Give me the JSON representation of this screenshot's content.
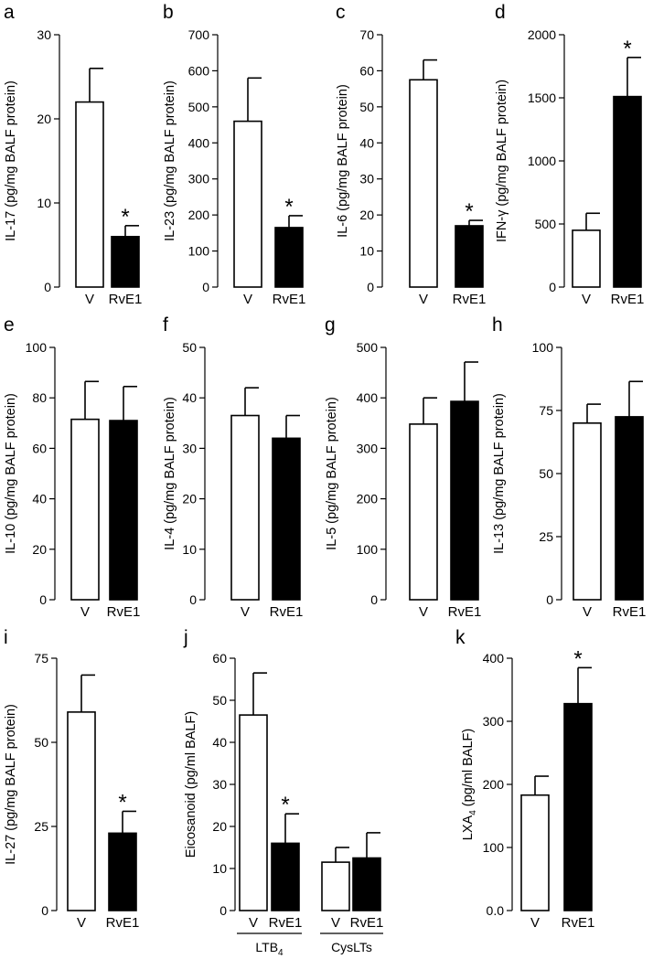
{
  "colors": {
    "vehicle_fill": "#ffffff",
    "rve1_fill": "#000000",
    "stroke": "#000000"
  },
  "chart_data": [
    {
      "type": "bar",
      "panel": "a",
      "ylabel": "IL-17 (pg/mg BALF protein)",
      "ylim": [
        0,
        30
      ],
      "yticks": [
        "0",
        "10",
        "20",
        "30"
      ],
      "categories": [
        "V",
        "RvE1"
      ],
      "values": [
        22,
        6
      ],
      "errors": [
        4,
        1.3
      ],
      "significant": [
        false,
        true
      ],
      "asterisk": "*"
    },
    {
      "type": "bar",
      "panel": "b",
      "ylabel": "IL-23 (pg/mg BALF protein)",
      "ylim": [
        0,
        700
      ],
      "yticks": [
        "0",
        "100",
        "200",
        "300",
        "400",
        "500",
        "600",
        "700"
      ],
      "categories": [
        "V",
        "RvE1"
      ],
      "values": [
        460,
        165
      ],
      "errors": [
        120,
        33
      ],
      "significant": [
        false,
        true
      ],
      "asterisk": "*"
    },
    {
      "type": "bar",
      "panel": "c",
      "ylabel": "IL-6 (pg/mg BALF protein)",
      "ylim": [
        0,
        70
      ],
      "yticks": [
        "0",
        "10",
        "20",
        "30",
        "40",
        "50",
        "60",
        "70"
      ],
      "categories": [
        "V",
        "RvE1"
      ],
      "values": [
        57.5,
        17
      ],
      "errors": [
        5.5,
        1.5
      ],
      "significant": [
        false,
        true
      ],
      "asterisk": "*"
    },
    {
      "type": "bar",
      "panel": "d",
      "ylabel": "IFN-γ (pg/mg BALF protein)",
      "ylim": [
        0,
        2000
      ],
      "yticks": [
        "0",
        "500",
        "1000",
        "1500",
        "2000"
      ],
      "categories": [
        "V",
        "RvE1"
      ],
      "values": [
        450,
        1510
      ],
      "errors": [
        135,
        310
      ],
      "significant": [
        false,
        true
      ],
      "asterisk": "*"
    },
    {
      "type": "bar",
      "panel": "e",
      "ylabel": "IL-10 (pg/mg BALF protein)",
      "ylim": [
        0,
        100
      ],
      "yticks": [
        "0",
        "20",
        "40",
        "60",
        "80",
        "100"
      ],
      "categories": [
        "V",
        "RvE1"
      ],
      "values": [
        71.5,
        71
      ],
      "errors": [
        15,
        13.5
      ],
      "significant": [
        false,
        false
      ],
      "asterisk": "*"
    },
    {
      "type": "bar",
      "panel": "f",
      "ylabel": "IL-4 (pg/mg BALF protein)",
      "ylim": [
        0,
        50
      ],
      "yticks": [
        "0",
        "10",
        "20",
        "30",
        "40",
        "50"
      ],
      "categories": [
        "V",
        "RvE1"
      ],
      "values": [
        36.5,
        32
      ],
      "errors": [
        5.5,
        4.5
      ],
      "significant": [
        false,
        false
      ],
      "asterisk": "*"
    },
    {
      "type": "bar",
      "panel": "g",
      "ylabel": "IL-5 (pg/mg BALF protein)",
      "ylim": [
        0,
        500
      ],
      "yticks": [
        "0",
        "100",
        "200",
        "300",
        "400",
        "500"
      ],
      "categories": [
        "V",
        "RvE1"
      ],
      "values": [
        348,
        393
      ],
      "errors": [
        52,
        78
      ],
      "significant": [
        false,
        false
      ],
      "asterisk": "*"
    },
    {
      "type": "bar",
      "panel": "h",
      "ylabel": "IL-13 (pg/mg BALF protein)",
      "ylim": [
        0,
        100
      ],
      "yticks": [
        "0",
        "25",
        "50",
        "75",
        "100"
      ],
      "categories": [
        "V",
        "RvE1"
      ],
      "values": [
        70,
        72.5
      ],
      "errors": [
        7.5,
        14
      ],
      "significant": [
        false,
        false
      ],
      "asterisk": "*"
    },
    {
      "type": "bar",
      "panel": "i",
      "ylabel": "IL-27 (pg/mg BALF protein)",
      "ylim": [
        0,
        75
      ],
      "yticks": [
        "0",
        "25",
        "50",
        "75"
      ],
      "categories": [
        "V",
        "RvE1"
      ],
      "values": [
        59,
        23
      ],
      "errors": [
        11,
        6.5
      ],
      "significant": [
        false,
        true
      ],
      "asterisk": "*"
    },
    {
      "type": "bar",
      "panel": "j",
      "ylabel": "Eicosanoid (pg/ml BALF)",
      "ylim": [
        0,
        60
      ],
      "yticks": [
        "0",
        "10",
        "20",
        "30",
        "40",
        "50",
        "60"
      ],
      "categories": [
        "V",
        "RvE1",
        "V",
        "RvE1"
      ],
      "groups": [
        "LTB4",
        "CysLTs"
      ],
      "group_sub": "4",
      "values": [
        46.5,
        16,
        11.5,
        12.5
      ],
      "errors": [
        10,
        7,
        3.5,
        6
      ],
      "significant": [
        false,
        true,
        false,
        false
      ],
      "asterisk": "*"
    },
    {
      "type": "bar",
      "panel": "k",
      "ylabel": "LXA4 (pg/ml BALF)",
      "ylim": [
        0,
        400
      ],
      "yticks": [
        "0.0",
        "100",
        "200",
        "300",
        "400"
      ],
      "categories": [
        "V",
        "RvE1"
      ],
      "values": [
        183,
        328
      ],
      "errors": [
        30,
        57
      ],
      "significant": [
        false,
        true
      ],
      "asterisk": "*"
    }
  ]
}
